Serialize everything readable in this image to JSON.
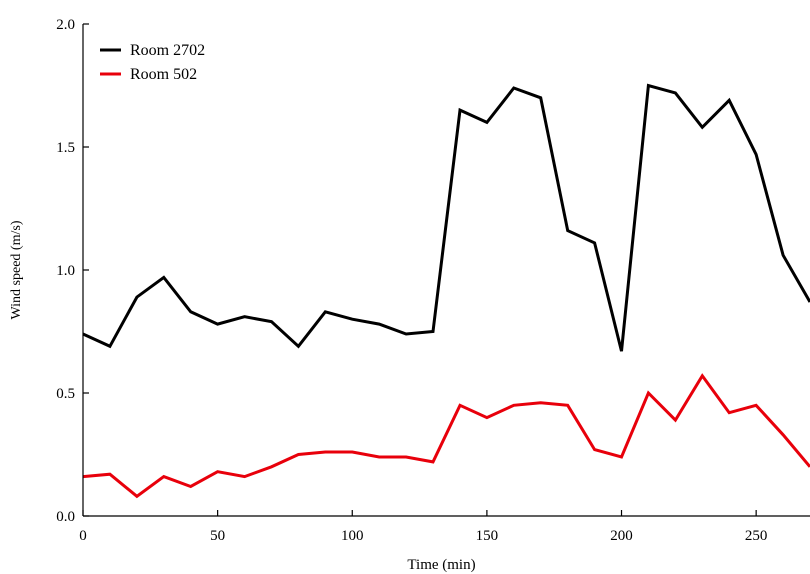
{
  "chart_data": {
    "type": "line",
    "xlabel": "Time (min)",
    "ylabel": "Wind speed (m/s)",
    "xlim": [
      0,
      270
    ],
    "ylim": [
      0,
      2.0
    ],
    "xticks": [
      0,
      50,
      100,
      150,
      200,
      250
    ],
    "xtick_labels": [
      "0",
      "50",
      "100",
      "150",
      "200",
      "250"
    ],
    "yticks": [
      0,
      0.5,
      1.0,
      1.5,
      2.0
    ],
    "ytick_labels": [
      "0.0",
      "0.5",
      "1.0",
      "1.5",
      "2.0"
    ],
    "grid": false,
    "legend_position": "top-left",
    "x": [
      0,
      10,
      20,
      30,
      40,
      50,
      60,
      70,
      80,
      90,
      100,
      110,
      120,
      130,
      140,
      150,
      160,
      170,
      180,
      190,
      200,
      210,
      220,
      230,
      240,
      250,
      260,
      270
    ],
    "series": [
      {
        "name": "Room 2702",
        "color": "#000000",
        "values": [
          0.74,
          0.69,
          0.89,
          0.97,
          0.83,
          0.78,
          0.81,
          0.79,
          0.69,
          0.83,
          0.8,
          0.78,
          0.74,
          0.75,
          1.65,
          1.6,
          1.74,
          1.7,
          1.16,
          1.11,
          0.67,
          1.75,
          1.72,
          1.58,
          1.69,
          1.47,
          1.06,
          0.87
        ]
      },
      {
        "name": "Room 502",
        "color": "#e8000b",
        "values": [
          0.16,
          0.17,
          0.08,
          0.16,
          0.12,
          0.18,
          0.16,
          0.2,
          0.25,
          0.26,
          0.26,
          0.24,
          0.24,
          0.22,
          0.45,
          0.4,
          0.45,
          0.46,
          0.45,
          0.27,
          0.24,
          0.5,
          0.39,
          0.57,
          0.42,
          0.45,
          0.33,
          0.2
        ]
      }
    ]
  }
}
